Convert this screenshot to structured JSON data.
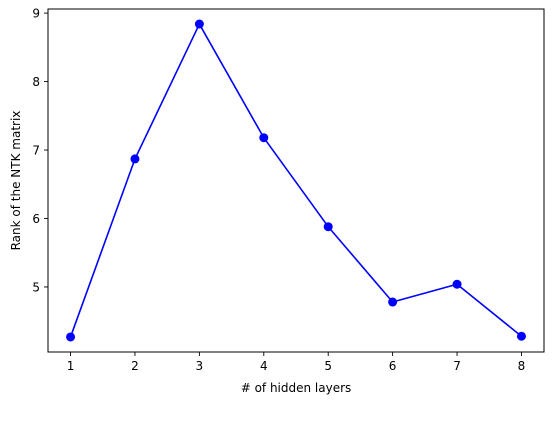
{
  "chart_data": {
    "type": "line",
    "title": "",
    "xlabel": "# of hidden layers",
    "ylabel": "Rank of the NTK matrix",
    "x": [
      1,
      2,
      3,
      4,
      5,
      6,
      7,
      8
    ],
    "series": [
      {
        "values": [
          4.27,
          6.87,
          8.84,
          7.18,
          5.88,
          4.78,
          5.04,
          4.28
        ],
        "color": "#0000ff",
        "marker": "circle"
      }
    ],
    "xlim": [
      0.65,
      8.35
    ],
    "ylim": [
      4.05,
      9.06
    ],
    "xticks": [
      1,
      2,
      3,
      4,
      5,
      6,
      7,
      8
    ],
    "yticks": [
      5,
      6,
      7,
      8,
      9
    ],
    "grid": false,
    "legend": "none"
  }
}
